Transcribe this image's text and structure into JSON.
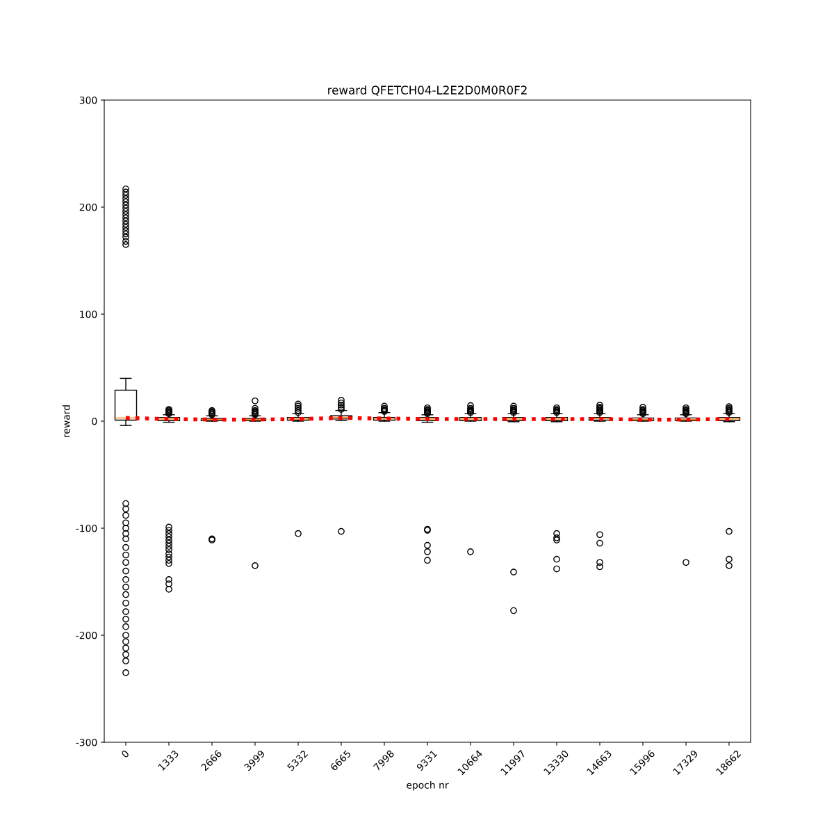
{
  "chart_data": {
    "type": "box",
    "title": "reward QFETCH04-L2E2D0M0R0F2",
    "xlabel": "epoch nr",
    "ylabel": "reward",
    "categories": [
      "0",
      "1333",
      "2666",
      "3999",
      "5332",
      "6665",
      "7998",
      "9331",
      "10664",
      "11997",
      "13330",
      "14663",
      "15996",
      "17329",
      "18662"
    ],
    "ylim": [
      -300,
      300
    ],
    "yticks": [
      -300,
      -200,
      -100,
      0,
      100,
      200,
      300
    ],
    "grid": false,
    "series": [
      {
        "type": "box",
        "color": "#000000",
        "boxes": [
          {
            "low": -4,
            "q1": 1,
            "median": 3,
            "q3": 29,
            "high": 40,
            "outliers": [
              165,
              168,
              172,
              175,
              178,
              181,
              184,
              187,
              190,
              193,
              196,
              199,
              202,
              205,
              208,
              211,
              214,
              217,
              -77,
              -82,
              -88,
              -95,
              -100,
              -105,
              -110,
              -118,
              -125,
              -132,
              -140,
              -148,
              -155,
              -162,
              -170,
              -178,
              -185,
              -192,
              -200,
              -206,
              -212,
              -218,
              -224,
              -235
            ]
          },
          {
            "low": -1,
            "q1": 0.5,
            "median": 2,
            "q3": 3.5,
            "high": 6,
            "outliers": [
              7,
              8,
              9,
              10,
              11,
              -99,
              -102,
              -105,
              -108,
              -111,
              -114,
              -117,
              -120,
              -124,
              -127,
              -130,
              -133,
              -148,
              -152,
              -157
            ]
          },
          {
            "low": 0,
            "q1": 0.5,
            "median": 1.5,
            "q3": 2.5,
            "high": 5,
            "outliers": [
              6,
              7,
              8,
              9,
              10,
              -110,
              -111
            ]
          },
          {
            "low": 0,
            "q1": 0.5,
            "median": 1.5,
            "q3": 2.5,
            "high": 5,
            "outliers": [
              6,
              7,
              8,
              9,
              10,
              12,
              19,
              -135
            ]
          },
          {
            "low": 0,
            "q1": 1,
            "median": 2,
            "q3": 3.5,
            "high": 7,
            "outliers": [
              8,
              10,
              12,
              14,
              16,
              -105
            ]
          },
          {
            "low": 0.5,
            "q1": 2,
            "median": 3.5,
            "q3": 5,
            "high": 10,
            "outliers": [
              11,
              13,
              15,
              17,
              19.5,
              -103
            ]
          },
          {
            "low": 0,
            "q1": 1,
            "median": 2.5,
            "q3": 3.5,
            "high": 8,
            "outliers": [
              9,
              10,
              11,
              12,
              14
            ]
          },
          {
            "low": -1,
            "q1": 0.5,
            "median": 2,
            "q3": 3.5,
            "high": 6,
            "outliers": [
              7,
              8,
              9,
              10,
              11,
              12.5,
              -101,
              -102,
              -116,
              -122,
              -130
            ]
          },
          {
            "low": 0,
            "q1": 0.5,
            "median": 2,
            "q3": 3.5,
            "high": 7,
            "outliers": [
              8,
              9,
              10,
              11,
              12,
              14.5,
              -122
            ]
          },
          {
            "low": -0.5,
            "q1": 0.5,
            "median": 2,
            "q3": 3.5,
            "high": 7,
            "outliers": [
              8,
              9,
              10,
              11,
              12,
              14,
              -141,
              -177
            ]
          },
          {
            "low": -0.5,
            "q1": 0.5,
            "median": 2,
            "q3": 3.5,
            "high": 7,
            "outliers": [
              8,
              9,
              10,
              11,
              12.5,
              -105,
              -109,
              -111,
              -129,
              -138
            ]
          },
          {
            "low": 0,
            "q1": 1,
            "median": 2.5,
            "q3": 3.5,
            "high": 7,
            "outliers": [
              8,
              9,
              10,
              11,
              12,
              13,
              15,
              -106,
              -114,
              -132,
              -136
            ]
          },
          {
            "low": 0,
            "q1": 0.5,
            "median": 1.5,
            "q3": 3,
            "high": 6,
            "outliers": [
              7,
              8,
              9,
              10,
              11,
              13
            ]
          },
          {
            "low": 0,
            "q1": 0.5,
            "median": 1.5,
            "q3": 3,
            "high": 6,
            "outliers": [
              7,
              8,
              9,
              10,
              11,
              12.5,
              -132
            ]
          },
          {
            "low": -0.5,
            "q1": 0.5,
            "median": 2,
            "q3": 3.5,
            "high": 7,
            "outliers": [
              8,
              9,
              10,
              11,
              12,
              13.5,
              -103,
              -129,
              -135
            ]
          }
        ]
      },
      {
        "type": "line",
        "color": "#ff0000",
        "line_style": "dotted",
        "values": [
          3,
          2,
          1.5,
          1.5,
          2,
          3,
          2.5,
          2,
          2,
          2,
          2,
          2,
          1.5,
          1.5,
          2
        ]
      }
    ]
  }
}
